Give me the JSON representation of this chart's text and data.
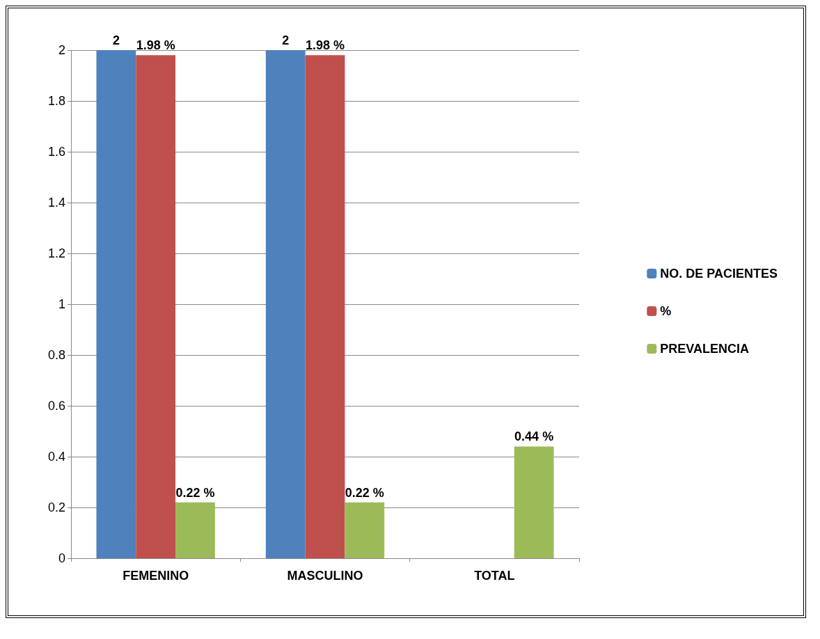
{
  "chart_data": {
    "type": "bar",
    "categories": [
      "FEMENINO",
      "MASCULINO",
      "TOTAL"
    ],
    "series": [
      {
        "name": "NO. DE PACIENTES",
        "color": "#4f81bd",
        "values": [
          2,
          2,
          null
        ],
        "value_labels": [
          "2",
          "2",
          null
        ]
      },
      {
        "name": "%",
        "color": "#c0504d",
        "values": [
          1.98,
          1.98,
          null
        ],
        "value_labels": [
          "1.98 %",
          "1.98 %",
          null
        ]
      },
      {
        "name": "PREVALENCIA",
        "color": "#9bbb59",
        "values": [
          0.22,
          0.22,
          0.44
        ],
        "value_labels": [
          "0.22 %",
          "0.22 %",
          "0.44 %"
        ]
      }
    ],
    "ylim": [
      0,
      2
    ],
    "yticks": [
      0,
      0.2,
      0.4,
      0.6,
      0.8,
      1,
      1.2,
      1.4,
      1.6,
      1.8,
      2
    ],
    "grid": "y",
    "legend": "right"
  }
}
